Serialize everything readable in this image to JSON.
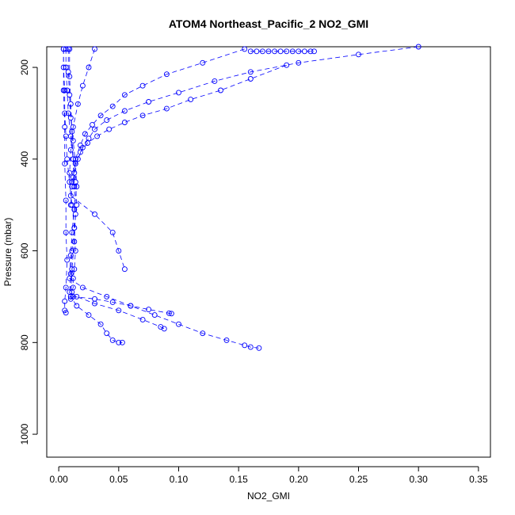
{
  "chart_data": {
    "type": "scatter",
    "title": "ATOM4 Northeast_Pacific_2 NO2_GMI",
    "xlabel": "NO2_GMI",
    "ylabel": "Pressure (mbar)",
    "xlim": [
      -0.01,
      0.36
    ],
    "ylim": [
      1050,
      155
    ],
    "y_reversed": true,
    "x_ticks": [
      0.0,
      0.05,
      0.1,
      0.15,
      0.2,
      0.25,
      0.3,
      0.35
    ],
    "x_tick_labels": [
      "0.00",
      "0.05",
      "0.10",
      "0.15",
      "0.20",
      "0.25",
      "0.30",
      "0.35"
    ],
    "y_ticks": [
      200,
      400,
      600,
      800,
      1000
    ],
    "y_tick_labels": [
      "200",
      "400",
      "600",
      "800",
      "1000"
    ],
    "grid": false,
    "color": "#0000ff",
    "marker": "open-circle",
    "line_style": "dashed",
    "series": [
      {
        "x": [
          0.004,
          0.004,
          0.005,
          0.005,
          0.006,
          0.007,
          0.009,
          0.011,
          0.013,
          0.014,
          0.013,
          0.012,
          0.012,
          0.011,
          0.01,
          0.01,
          0.012,
          0.03,
          0.045,
          0.06,
          0.075,
          0.092,
          0.094
        ],
        "y": [
          160,
          200,
          250,
          300,
          350,
          400,
          450,
          500,
          550,
          600,
          640,
          660,
          680,
          690,
          700,
          705,
          700,
          705,
          712,
          720,
          728,
          736,
          737
        ]
      },
      {
        "x": [
          0.006,
          0.006,
          0.007,
          0.008,
          0.01,
          0.012,
          0.014,
          0.015,
          0.013,
          0.011,
          0.01,
          0.009,
          0.015,
          0.03,
          0.05,
          0.07,
          0.085,
          0.088
        ],
        "y": [
          160,
          200,
          250,
          300,
          350,
          400,
          450,
          500,
          550,
          600,
          650,
          690,
          700,
          715,
          730,
          750,
          766,
          770
        ]
      },
      {
        "x": [
          0.008,
          0.008,
          0.009,
          0.01,
          0.012,
          0.014,
          0.015,
          0.013,
          0.011,
          0.01,
          0.009,
          0.02,
          0.04,
          0.06,
          0.08,
          0.1,
          0.12,
          0.14,
          0.155,
          0.16,
          0.167
        ],
        "y": [
          160,
          210,
          260,
          310,
          360,
          410,
          460,
          510,
          560,
          610,
          660,
          680,
          700,
          720,
          740,
          760,
          780,
          795,
          806,
          810,
          812
        ]
      },
      {
        "x": [
          0.009,
          0.009,
          0.01,
          0.011,
          0.012,
          0.013,
          0.014,
          0.013,
          0.011,
          0.01,
          0.015,
          0.025,
          0.035,
          0.04,
          0.045,
          0.05,
          0.053
        ],
        "y": [
          160,
          220,
          280,
          340,
          400,
          460,
          520,
          580,
          640,
          700,
          720,
          740,
          760,
          780,
          795,
          800,
          800
        ]
      },
      {
        "x": [
          0.16,
          0.165,
          0.17,
          0.175,
          0.18,
          0.185,
          0.19,
          0.195,
          0.2,
          0.205,
          0.21,
          0.213
        ],
        "y": [
          165,
          165,
          165,
          165,
          165,
          165,
          165,
          165,
          165,
          165,
          165,
          165
        ]
      },
      {
        "x": [
          0.3,
          0.25,
          0.2,
          0.16,
          0.13,
          0.1,
          0.075,
          0.055,
          0.04,
          0.03,
          0.025,
          0.02,
          0.016,
          0.013,
          0.011,
          0.01
        ],
        "y": [
          155,
          172,
          190,
          210,
          230,
          255,
          275,
          295,
          315,
          335,
          355,
          375,
          400,
          430,
          460,
          500
        ]
      },
      {
        "x": [
          0.155,
          0.12,
          0.09,
          0.07,
          0.055,
          0.045,
          0.035,
          0.028,
          0.022,
          0.018,
          0.014,
          0.012
        ],
        "y": [
          160,
          190,
          215,
          240,
          260,
          285,
          305,
          325,
          345,
          370,
          400,
          440
        ]
      },
      {
        "x": [
          0.19,
          0.16,
          0.135,
          0.11,
          0.09,
          0.07,
          0.055,
          0.042,
          0.032,
          0.024,
          0.018,
          0.014,
          0.011
        ],
        "y": [
          195,
          225,
          250,
          270,
          290,
          305,
          320,
          335,
          350,
          365,
          385,
          410,
          450
        ]
      },
      {
        "x": [
          0.004,
          0.004,
          0.005,
          0.005,
          0.006,
          0.006,
          0.007,
          0.006,
          0.005,
          0.005,
          0.006
        ],
        "y": [
          160,
          250,
          330,
          410,
          490,
          560,
          620,
          680,
          710,
          730,
          735
        ]
      },
      {
        "x": [
          0.03,
          0.025,
          0.02,
          0.016,
          0.012,
          0.01,
          0.009,
          0.01,
          0.03,
          0.045,
          0.05,
          0.055
        ],
        "y": [
          160,
          200,
          240,
          280,
          330,
          380,
          430,
          480,
          520,
          560,
          600,
          640
        ]
      }
    ]
  }
}
